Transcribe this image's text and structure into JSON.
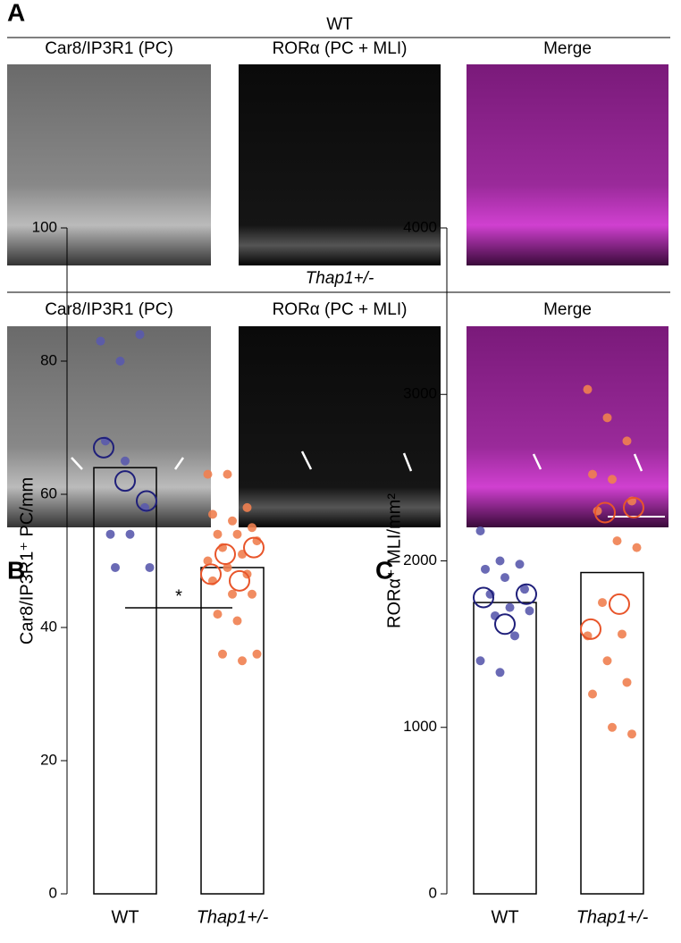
{
  "figure": {
    "panel_labels": [
      "A",
      "B",
      "C"
    ],
    "rows": [
      {
        "genotype": "WT",
        "columns": [
          "Car8/IP3R1 (PC)",
          "RORα (PC + MLI)",
          "Merge"
        ]
      },
      {
        "genotype": "Thap1+/-",
        "columns": [
          "Car8/IP3R1 (PC)",
          "RORα (PC + MLI)",
          "Merge"
        ]
      }
    ]
  },
  "chart_data": [
    {
      "type": "bar",
      "y_label": "Car8/IP3R1⁺ PC/mm",
      "categories": [
        "WT",
        "Thap1+/-"
      ],
      "values": [
        64,
        49
      ],
      "ylim": [
        0,
        100
      ],
      "yticks": [
        0,
        20,
        40,
        60,
        80,
        100
      ],
      "annotation": "*",
      "points": [
        {
          "color": "#5a5aad",
          "values": [
            83,
            80,
            84,
            68,
            65,
            58,
            54,
            54,
            49,
            49
          ]
        },
        {
          "color": "#f08050",
          "values": [
            63,
            63,
            58,
            57,
            56,
            55,
            54,
            54,
            53,
            52,
            51,
            50,
            49,
            48,
            47,
            45,
            45,
            42,
            41,
            36,
            36,
            35
          ]
        }
      ],
      "means": [
        {
          "color": "#1f1f7a",
          "values": [
            67,
            62,
            59
          ]
        },
        {
          "color": "#e8552a",
          "values": [
            48,
            51,
            47,
            52
          ]
        }
      ]
    },
    {
      "type": "bar",
      "y_label": "RORα⁺ MLI/mm²",
      "categories": [
        "WT",
        "Thap1+/-"
      ],
      "values": [
        1750,
        1930
      ],
      "ylim": [
        0,
        4000
      ],
      "yticks": [
        0,
        1000,
        2000,
        3000,
        4000
      ],
      "points": [
        {
          "color": "#5a5aad",
          "values": [
            2180,
            2000,
            1980,
            1950,
            1900,
            1830,
            1800,
            1720,
            1700,
            1670,
            1550,
            1400,
            1330
          ]
        },
        {
          "color": "#f08050",
          "values": [
            3030,
            2860,
            2720,
            2520,
            2490,
            2360,
            2300,
            2120,
            2080,
            1750,
            1560,
            1550,
            1400,
            1270,
            1200,
            1000,
            960
          ]
        }
      ],
      "means": [
        {
          "color": "#1f1f7a",
          "values": [
            1780,
            1620,
            1800
          ]
        },
        {
          "color": "#e8552a",
          "values": [
            1590,
            2290,
            1740,
            2320
          ]
        }
      ]
    }
  ]
}
